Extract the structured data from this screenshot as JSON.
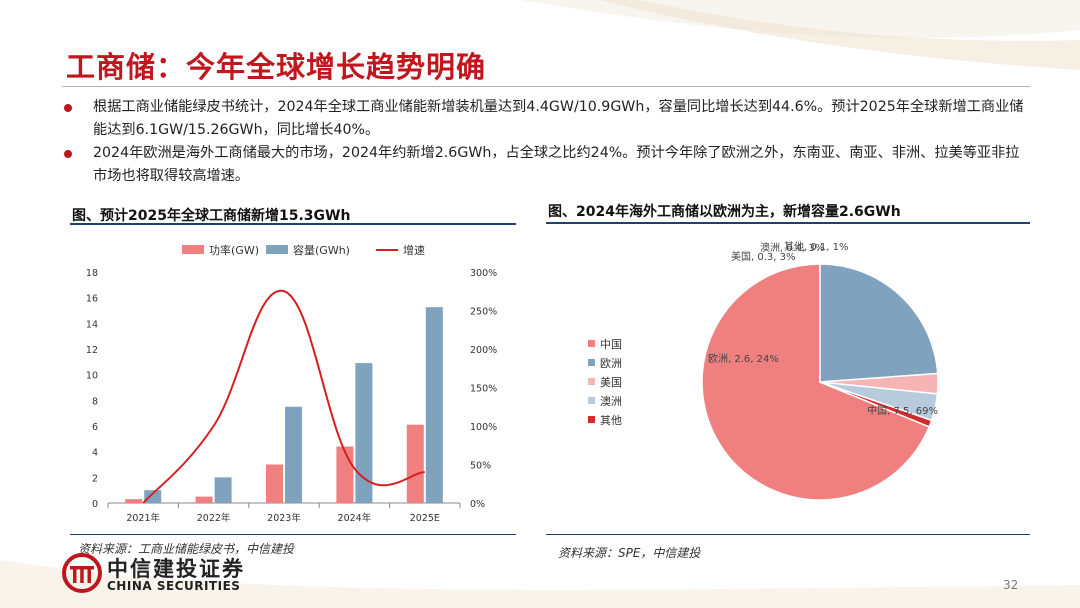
{
  "header": {
    "title": "工商储：今年全球增长趋势明确"
  },
  "bullets": [
    "根据工商业储能绿皮书统计，2024年全球工商业储能新增装机量达到4.4GW/10.9GWh，容量同比增长达到44.6%。预计2025年全球新增工商业储能达到6.1GW/15.26GWh，同比增长40%。",
    "2024年欧洲是海外工商储最大的市场，2024年约新增2.6GWh，占全球之比约24%。预计今年除了欧洲之外，东南亚、南亚、非洲、拉美等亚非拉市场也将取得较高增速。"
  ],
  "colors": {
    "brand_red": "#c0161e",
    "power": "#f08080",
    "capacity": "#7fa3bf",
    "growth": "#d61f1f",
    "rule": "#1e3f73"
  },
  "left_figure": {
    "title": "图、预计2025年全球工商储新增15.3GWh",
    "source": "资料来源：工商业储能绿皮书，中信建投"
  },
  "right_figure": {
    "title": "图、2024年海外工商储以欧洲为主，新增容量2.6GWh",
    "source": "资料来源：SPE，中信建投"
  },
  "chart_data": [
    {
      "type": "bar",
      "categories": [
        "2021年",
        "2022年",
        "2023年",
        "2024年",
        "2025E"
      ],
      "series": [
        {
          "name": "功率(GW)",
          "type": "bar",
          "values": [
            0.3,
            0.5,
            3.0,
            4.4,
            6.1
          ]
        },
        {
          "name": "容量(GWh)",
          "type": "bar",
          "values": [
            1.0,
            2.0,
            7.5,
            10.9,
            15.26
          ]
        },
        {
          "name": "增速",
          "type": "line",
          "axis": "right",
          "values": [
            0.0,
            100,
            275,
            45,
            40
          ]
        }
      ],
      "y_left": {
        "min": 0,
        "max": 18,
        "ticks": [
          "0",
          "2",
          "4",
          "6",
          "8",
          "10",
          "12",
          "14",
          "16",
          "18"
        ]
      },
      "y_right": {
        "min": 0,
        "max": 300,
        "ticks": [
          "0%",
          "50%",
          "100%",
          "150%",
          "200%",
          "250%",
          "300%"
        ]
      },
      "legend": "top"
    },
    {
      "type": "pie",
      "labels": [
        "中国",
        "欧洲",
        "美国",
        "澳洲",
        "其他"
      ],
      "values": [
        7.5,
        2.6,
        0.3,
        0.4,
        0.1
      ],
      "percents": [
        69,
        24,
        3,
        3,
        1
      ],
      "colors": [
        "#f08080",
        "#7fa3bf",
        "#f5b5b5",
        "#b8cbdc",
        "#d42a2a"
      ],
      "slice_labels": [
        "中国, 7.5, 69%",
        "欧洲, 2.6, 24%",
        "美国, 0.3, 3%",
        "澳洲, 0.4, 3%",
        "其他, 0.1, 1%"
      ],
      "legend": "left"
    }
  ],
  "footer": {
    "logo_cn": "中信建投证券",
    "logo_en": "CHINA SECURITIES",
    "page": "32"
  }
}
